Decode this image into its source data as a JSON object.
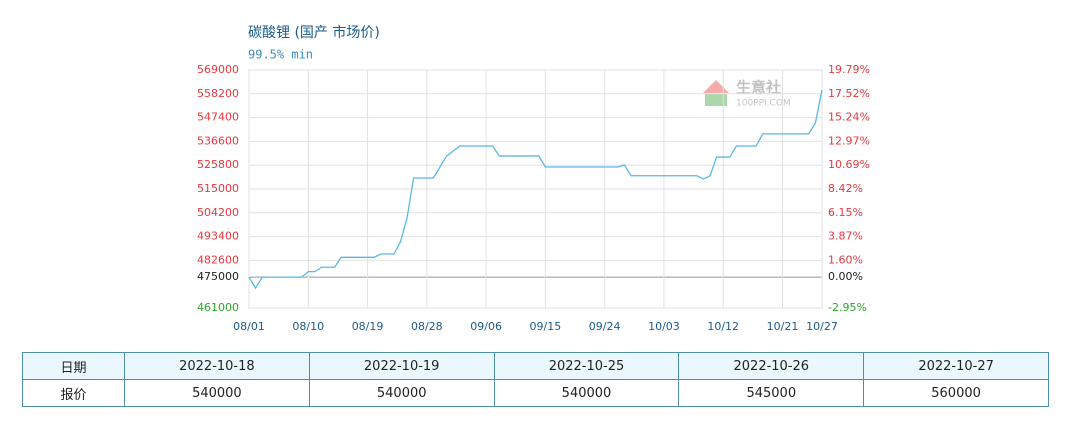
{
  "chart_data": {
    "type": "line",
    "title": "碳酸锂 (国产 市场价)",
    "subtitle": "99.5% min",
    "watermark": [
      "生意社",
      "100PPI.COM"
    ],
    "x": [
      "08/01",
      "08/02",
      "08/03",
      "08/09",
      "08/10",
      "08/11",
      "08/12",
      "08/14",
      "08/15",
      "08/20",
      "08/21",
      "08/23",
      "08/24",
      "08/25",
      "08/26",
      "08/29",
      "08/31",
      "09/02",
      "09/07",
      "09/08",
      "09/14",
      "09/15",
      "09/26",
      "09/27",
      "09/28",
      "10/08",
      "10/09",
      "10/10",
      "10/11",
      "10/13",
      "10/14",
      "10/17",
      "10/18",
      "10/25",
      "10/26",
      "10/27"
    ],
    "values": [
      475000,
      470000,
      475000,
      475000,
      477500,
      477500,
      479500,
      479500,
      484000,
      484000,
      485500,
      485500,
      491000,
      502000,
      520000,
      520000,
      530000,
      534500,
      534500,
      530000,
      530000,
      525000,
      525000,
      526000,
      521000,
      521000,
      519500,
      521000,
      529500,
      529500,
      534500,
      534500,
      540000,
      540000,
      545000,
      560000
    ],
    "color": "#5bb8e2",
    "xticks": [
      "08/01",
      "08/10",
      "08/19",
      "08/28",
      "09/06",
      "09/15",
      "09/24",
      "10/03",
      "10/12",
      "10/21",
      "10/27"
    ],
    "ylim": [
      461000,
      569000
    ],
    "yticks": [
      569000,
      558200,
      547400,
      536600,
      525800,
      515000,
      504200,
      493400,
      482600,
      475000,
      461000
    ],
    "y2lim": [
      -2.95,
      19.79
    ],
    "y2ticks": [
      {
        "value": 19.79,
        "label": "19.79%"
      },
      {
        "value": 17.52,
        "label": "17.52%"
      },
      {
        "value": 15.24,
        "label": "15.24%"
      },
      {
        "value": 12.97,
        "label": "12.97%"
      },
      {
        "value": 10.69,
        "label": "10.69%"
      },
      {
        "value": 8.42,
        "label": "8.42%"
      },
      {
        "value": 6.15,
        "label": "6.15%"
      },
      {
        "value": 3.87,
        "label": "3.87%"
      },
      {
        "value": 1.6,
        "label": "1.60%"
      },
      {
        "value": 0,
        "label": "0.00%"
      },
      {
        "value": -2.95,
        "label": "-2.95%"
      }
    ],
    "grid": true,
    "up_color": "#e8373e",
    "base_color": "#222222",
    "down_color": "#2aa52a"
  },
  "table": {
    "header": [
      "日期",
      "2022-10-18",
      "2022-10-19",
      "2022-10-25",
      "2022-10-26",
      "2022-10-27"
    ],
    "rows": [
      [
        "报价",
        540000,
        540000,
        540000,
        545000,
        560000
      ]
    ]
  }
}
